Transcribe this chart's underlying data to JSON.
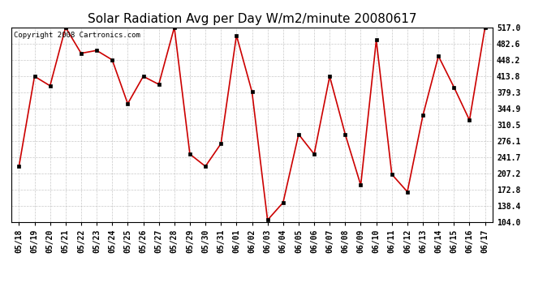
{
  "title": "Solar Radiation Avg per Day W/m2/minute 20080617",
  "copyright": "Copyright 2008 Cartronics.com",
  "line_color": "#cc0000",
  "marker_color": "#000000",
  "bg_color": "#ffffff",
  "grid_color": "#bbbbbb",
  "dates": [
    "05/18",
    "05/19",
    "05/20",
    "05/21",
    "05/22",
    "05/23",
    "05/24",
    "05/25",
    "05/26",
    "05/27",
    "05/28",
    "05/29",
    "05/30",
    "05/31",
    "06/01",
    "06/02",
    "06/03",
    "06/04",
    "06/05",
    "06/06",
    "06/07",
    "06/08",
    "06/09",
    "06/10",
    "06/11",
    "06/12",
    "06/13",
    "06/14",
    "06/15",
    "06/16",
    "06/17"
  ],
  "values": [
    222,
    413,
    393,
    517,
    462,
    468,
    448,
    355,
    413,
    396,
    517,
    248,
    222,
    270,
    500,
    380,
    108,
    145,
    290,
    248,
    413,
    290,
    182,
    490,
    205,
    168,
    330,
    456,
    390,
    320,
    517
  ],
  "ylim": [
    104.0,
    517.0
  ],
  "yticks": [
    104.0,
    138.4,
    172.8,
    207.2,
    241.7,
    276.1,
    310.5,
    344.9,
    379.3,
    413.8,
    448.2,
    482.6,
    517.0
  ],
  "title_fontsize": 11,
  "tick_fontsize": 7,
  "copyright_fontsize": 6.5
}
